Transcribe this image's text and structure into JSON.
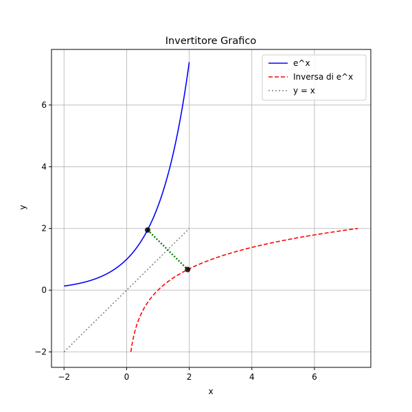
{
  "chart_data": {
    "type": "line",
    "title": "Invertitore Grafico",
    "xlabel": "x",
    "ylabel": "y",
    "xlim": [
      -2.4,
      7.8
    ],
    "ylim": [
      -2.5,
      7.8
    ],
    "xticks": [
      -2,
      0,
      2,
      4,
      6
    ],
    "yticks": [
      -2,
      0,
      2,
      4,
      6
    ],
    "xtick_labels": [
      "−2",
      "0",
      "2",
      "4",
      "6"
    ],
    "ytick_labels": [
      "−2",
      "0",
      "2",
      "4",
      "6"
    ],
    "grid": true,
    "legend_position": "top-right",
    "series": [
      {
        "name": "e^x",
        "color": "#0000ff",
        "style": "solid",
        "function": "exp",
        "domain": [
          -2,
          2
        ]
      },
      {
        "name": "Inversa di e^x",
        "color": "#ff0000",
        "style": "dashed",
        "function": "ln",
        "domain": [
          0.1353,
          7.389
        ]
      },
      {
        "name": "y = x",
        "color": "#808080",
        "style": "dotted",
        "function": "identity",
        "domain": [
          -2,
          2
        ]
      }
    ],
    "annotation": {
      "color": "#008000",
      "style": "dotted",
      "points": [
        {
          "x": 0.67,
          "y": 1.95
        },
        {
          "x": 1.95,
          "y": 0.67
        }
      ]
    }
  }
}
